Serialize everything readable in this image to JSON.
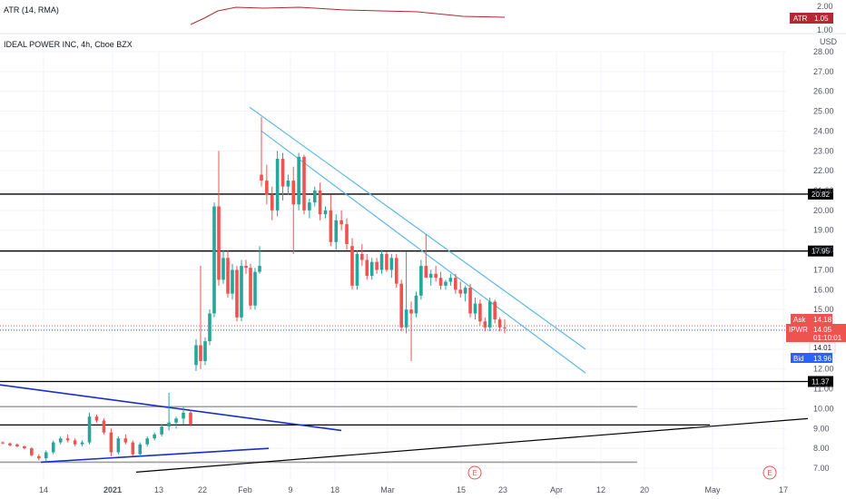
{
  "atr_pane": {
    "title": "ATR (14, RMA)",
    "badge_label": "ATR",
    "badge_value": "1.05",
    "axis_ticks": [
      "2.00",
      "1.00"
    ],
    "line_color": "#b22833"
  },
  "main_pane": {
    "title": "IDEAL POWER INC, 4h, Cboe BZX",
    "currency": "USD"
  },
  "labels": {
    "ask_label": "Ask",
    "ask_value": "14.18",
    "symbol_label": "IPWR",
    "symbol_value": "14.05",
    "countdown": "01:10:01",
    "last_value": "14.01",
    "bid_label": "Bid",
    "bid_value": "13.96"
  },
  "colors": {
    "up": "#26a69a",
    "down": "#ef5350",
    "trendline": "#5eb8e0",
    "triangle": "#1a2fc7",
    "level": "#000000",
    "gray_level": "#9e9e9e",
    "bid": "#2962ff",
    "ask": "#ef5350"
  },
  "chart_data": {
    "type": "candlestick",
    "title": "IDEAL POWER INC, 4h, Cboe BZX",
    "y_ticks": [
      "28.00",
      "27.00",
      "26.00",
      "25.00",
      "24.00",
      "23.00",
      "22.00",
      "21.00",
      "20.00",
      "19.00",
      "18.00",
      "17.00",
      "16.00",
      "15.00",
      "14.00",
      "13.00",
      "12.00",
      "11.00",
      "10.00",
      "9.00",
      "8.00",
      "7.00"
    ],
    "ylim": [
      6.5,
      28.5
    ],
    "x_ticks": [
      "14",
      "2021",
      "13",
      "22",
      "Feb",
      "9",
      "18",
      "Mar",
      "15",
      "23",
      "Apr",
      "12",
      "20",
      "May",
      "17"
    ],
    "levels": [
      {
        "value": 20.82,
        "label": "20.82",
        "color": "#000000"
      },
      {
        "value": 17.95,
        "label": "17.95",
        "color": "#000000"
      },
      {
        "value": 11.37,
        "label": "11.37",
        "color": "#000000"
      },
      {
        "value": 9.18,
        "label": "",
        "color": "#000000"
      },
      {
        "value": 10.1,
        "label": "",
        "color": "#9e9e9e"
      },
      {
        "value": 7.3,
        "label": "",
        "color": "#9e9e9e"
      }
    ],
    "trendlines": [
      {
        "name": "upper",
        "from": [
          275,
          25.2
        ],
        "to": [
          645,
          13.0
        ]
      },
      {
        "name": "lower",
        "from": [
          288,
          24.0
        ],
        "to": [
          645,
          11.8
        ]
      },
      {
        "name": "triangle-top",
        "from": [
          0,
          11.2
        ],
        "to": [
          376,
          8.9
        ]
      },
      {
        "name": "triangle-bottom",
        "from": [
          45,
          7.3
        ],
        "to": [
          296,
          8.0
        ]
      },
      {
        "name": "long-support",
        "from": [
          150,
          6.8
        ],
        "to": [
          890,
          9.5
        ]
      }
    ],
    "events": [
      {
        "x_label": "Mar 15",
        "symbol": "E"
      },
      {
        "x_label": "May 17",
        "symbol": "E"
      }
    ],
    "candles": [
      [
        8.3,
        8.35,
        8.2,
        8.25
      ],
      [
        8.25,
        8.3,
        8.1,
        8.15
      ],
      [
        8.2,
        8.25,
        8.05,
        8.1
      ],
      [
        8.1,
        8.15,
        7.95,
        8.0
      ],
      [
        8.0,
        8.05,
        7.6,
        7.65
      ],
      [
        7.6,
        7.7,
        7.4,
        7.5
      ],
      [
        7.5,
        7.9,
        7.35,
        7.8
      ],
      [
        7.8,
        8.4,
        7.7,
        8.3
      ],
      [
        8.3,
        8.6,
        8.2,
        8.5
      ],
      [
        8.5,
        8.7,
        8.3,
        8.4
      ],
      [
        8.4,
        8.5,
        8.1,
        8.2
      ],
      [
        8.2,
        8.4,
        8.1,
        8.3
      ],
      [
        8.3,
        9.8,
        8.2,
        9.6
      ],
      [
        9.6,
        9.7,
        9.3,
        9.4
      ],
      [
        9.4,
        9.5,
        8.7,
        8.8
      ],
      [
        8.8,
        9.0,
        7.6,
        7.8
      ],
      [
        7.8,
        8.6,
        7.7,
        8.5
      ],
      [
        8.5,
        8.7,
        8.2,
        8.3
      ],
      [
        8.3,
        8.4,
        7.6,
        7.7
      ],
      [
        7.7,
        8.3,
        7.6,
        8.2
      ],
      [
        8.2,
        8.6,
        8.1,
        8.5
      ],
      [
        8.5,
        8.8,
        8.4,
        8.7
      ],
      [
        8.7,
        9.2,
        8.6,
        9.1
      ],
      [
        9.1,
        10.8,
        8.9,
        9.3
      ],
      [
        9.3,
        9.6,
        9.0,
        9.5
      ],
      [
        9.5,
        10.1,
        9.2,
        9.8
      ],
      [
        9.8,
        9.9,
        9.1,
        9.2
      ],
      [
        12.2,
        13.5,
        11.9,
        13.2
      ],
      [
        13.2,
        17.2,
        12.0,
        12.4
      ],
      [
        12.4,
        13.6,
        12.2,
        13.4
      ],
      [
        13.4,
        15.0,
        13.2,
        14.8
      ],
      [
        14.8,
        20.4,
        14.6,
        20.2
      ],
      [
        20.2,
        23.0,
        16.2,
        16.5
      ],
      [
        16.5,
        18.0,
        16.3,
        17.6
      ],
      [
        17.6,
        18.0,
        15.6,
        15.8
      ],
      [
        15.8,
        17.3,
        15.5,
        17.0
      ],
      [
        17.0,
        17.2,
        14.4,
        14.6
      ],
      [
        14.6,
        17.5,
        14.4,
        17.2
      ],
      [
        17.2,
        17.5,
        16.8,
        17.1
      ],
      [
        17.1,
        17.3,
        15.0,
        15.2
      ],
      [
        15.2,
        17.1,
        15.0,
        16.9
      ],
      [
        16.9,
        18.2,
        16.8,
        17.2
      ],
      [
        21.8,
        24.7,
        21.2,
        21.5
      ],
      [
        21.5,
        22.3,
        20.3,
        20.8
      ],
      [
        20.8,
        21.2,
        19.5,
        20.0
      ],
      [
        20.0,
        23.0,
        19.7,
        22.6
      ],
      [
        22.6,
        22.9,
        20.5,
        21.2
      ],
      [
        21.2,
        21.8,
        20.8,
        21.5
      ],
      [
        21.5,
        22.2,
        17.8,
        20.3
      ],
      [
        20.3,
        22.9,
        20.0,
        22.7
      ],
      [
        22.7,
        22.8,
        19.8,
        20.0
      ],
      [
        20.0,
        20.6,
        19.6,
        20.4
      ],
      [
        20.4,
        21.2,
        20.2,
        21.0
      ],
      [
        21.0,
        21.4,
        19.5,
        19.8
      ],
      [
        19.8,
        20.2,
        19.6,
        20.0
      ],
      [
        20.0,
        20.8,
        18.2,
        18.4
      ],
      [
        18.4,
        19.8,
        18.0,
        19.5
      ],
      [
        19.5,
        20.0,
        19.0,
        19.3
      ],
      [
        19.3,
        19.6,
        18.0,
        18.3
      ],
      [
        18.2,
        18.6,
        16.0,
        16.2
      ],
      [
        16.2,
        18.0,
        16.0,
        17.8
      ],
      [
        17.8,
        18.3,
        17.2,
        17.5
      ],
      [
        17.5,
        17.8,
        16.5,
        16.7
      ],
      [
        16.7,
        17.6,
        16.5,
        17.4
      ],
      [
        17.4,
        17.6,
        16.8,
        17.0
      ],
      [
        17.0,
        18.0,
        16.8,
        17.8
      ],
      [
        17.8,
        17.9,
        16.9,
        17.0
      ],
      [
        17.0,
        17.8,
        16.6,
        17.6
      ],
      [
        17.6,
        17.8,
        16.1,
        16.3
      ],
      [
        16.3,
        16.5,
        13.9,
        14.1
      ],
      [
        14.1,
        17.9,
        13.8,
        15.0
      ],
      [
        15.0,
        15.4,
        12.4,
        14.8
      ],
      [
        14.8,
        15.9,
        14.6,
        15.7
      ],
      [
        15.7,
        17.5,
        15.5,
        17.2
      ],
      [
        17.2,
        18.8,
        16.8,
        16.6
      ],
      [
        16.6,
        17.0,
        16.2,
        16.8
      ],
      [
        16.8,
        17.2,
        16.4,
        16.6
      ],
      [
        16.6,
        16.9,
        16.0,
        16.2
      ],
      [
        16.2,
        16.5,
        16.0,
        16.4
      ],
      [
        16.4,
        16.8,
        16.2,
        16.6
      ],
      [
        16.6,
        16.8,
        15.8,
        16.0
      ],
      [
        16.0,
        16.4,
        15.6,
        15.8
      ],
      [
        15.8,
        16.2,
        15.4,
        16.1
      ],
      [
        16.1,
        16.3,
        14.6,
        14.8
      ],
      [
        14.8,
        15.6,
        14.5,
        15.3
      ],
      [
        15.3,
        15.5,
        14.2,
        14.4
      ],
      [
        14.4,
        14.6,
        13.9,
        14.1
      ],
      [
        14.1,
        15.6,
        13.9,
        15.4
      ],
      [
        15.4,
        15.5,
        14.3,
        14.5
      ],
      [
        14.5,
        14.6,
        13.9,
        14.1
      ],
      [
        14.1,
        14.5,
        13.8,
        14.05
      ]
    ]
  }
}
